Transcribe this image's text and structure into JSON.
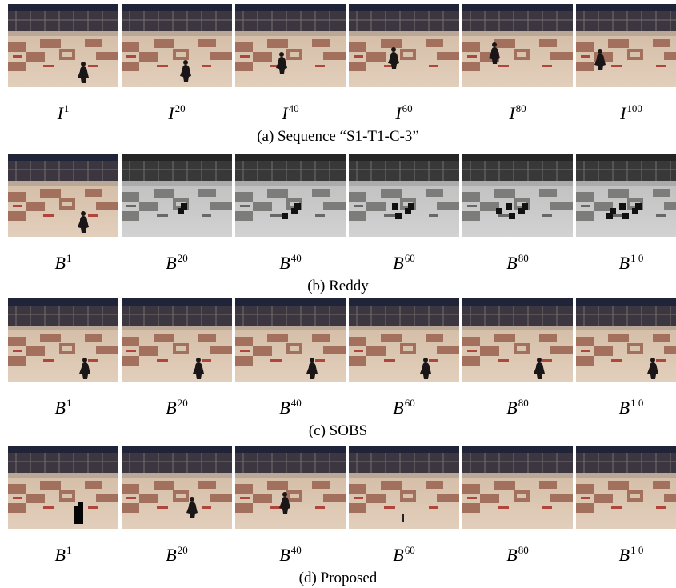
{
  "figure": {
    "rows": [
      {
        "caption": "(a) Sequence “S1-T1-C-3”",
        "frames": [
          {
            "base": "I",
            "sup": "1"
          },
          {
            "base": "I",
            "sup": "20"
          },
          {
            "base": "I",
            "sup": "40"
          },
          {
            "base": "I",
            "sup": "60"
          },
          {
            "base": "I",
            "sup": "80"
          },
          {
            "base": "I",
            "sup": "100"
          }
        ]
      },
      {
        "caption": "(b) Reddy",
        "frames": [
          {
            "base": "B",
            "sup": "1"
          },
          {
            "base": "B",
            "sup": "20"
          },
          {
            "base": "B",
            "sup": "40"
          },
          {
            "base": "B",
            "sup": "60"
          },
          {
            "base": "B",
            "sup": "80"
          },
          {
            "base": "B",
            "sup": "1 0"
          }
        ]
      },
      {
        "caption": "(c) SOBS",
        "frames": [
          {
            "base": "B",
            "sup": "1"
          },
          {
            "base": "B",
            "sup": "20"
          },
          {
            "base": "B",
            "sup": "40"
          },
          {
            "base": "B",
            "sup": "60"
          },
          {
            "base": "B",
            "sup": "80"
          },
          {
            "base": "B",
            "sup": "1 0"
          }
        ]
      },
      {
        "caption": "(d) Proposed",
        "frames": [
          {
            "base": "B",
            "sup": "1"
          },
          {
            "base": "B",
            "sup": "20"
          },
          {
            "base": "B",
            "sup": "40"
          },
          {
            "base": "B",
            "sup": "60"
          },
          {
            "base": "B",
            "sup": "80"
          },
          {
            "base": "B",
            "sup": "1 0"
          }
        ]
      }
    ]
  }
}
